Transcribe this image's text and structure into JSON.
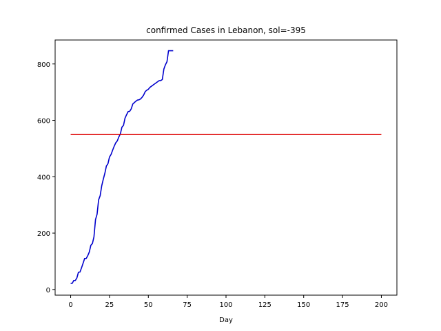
{
  "chart_data": {
    "type": "line",
    "title": "confirmed Cases in Lebanon, sol=-395",
    "xlabel": "Day",
    "ylabel": "",
    "xlim": [
      -10,
      210
    ],
    "ylim": [
      -20,
      885
    ],
    "xticks": [
      0,
      25,
      50,
      75,
      100,
      125,
      150,
      175,
      200
    ],
    "yticks": [
      0,
      200,
      400,
      600,
      800
    ],
    "grid": false,
    "series": [
      {
        "color": "#0000cc",
        "x": [
          0,
          1,
          2,
          3,
          4,
          5,
          6,
          7,
          8,
          9,
          10,
          11,
          12,
          13,
          14,
          15,
          16,
          17,
          18,
          19,
          20,
          21,
          22,
          23,
          24,
          25,
          26,
          27,
          28,
          29,
          30,
          31,
          32,
          33,
          34,
          35,
          36,
          37,
          38,
          39,
          40,
          41,
          42,
          43,
          44,
          45,
          46,
          47,
          48,
          49,
          50,
          51,
          52,
          53,
          54,
          55,
          56,
          57,
          58,
          59,
          60,
          61,
          62,
          63,
          64,
          65,
          66
        ],
        "y": [
          22,
          22,
          32,
          32,
          41,
          61,
          62,
          77,
          93,
          110,
          110,
          120,
          133,
          157,
          163,
          187,
          248,
          267,
          318,
          333,
          368,
          391,
          412,
          438,
          446,
          470,
          479,
          494,
          508,
          520,
          527,
          541,
          552,
          576,
          582,
          608,
          620,
          631,
          632,
          641,
          658,
          663,
          668,
          672,
          673,
          676,
          682,
          690,
          702,
          707,
          710,
          717,
          721,
          725,
          729,
          733,
          737,
          741,
          741,
          745,
          782,
          797,
          808,
          847,
          847,
          847,
          847
        ]
      },
      {
        "color": "#dd0000",
        "x": [
          0,
          200
        ],
        "y": [
          550,
          550
        ]
      }
    ]
  }
}
